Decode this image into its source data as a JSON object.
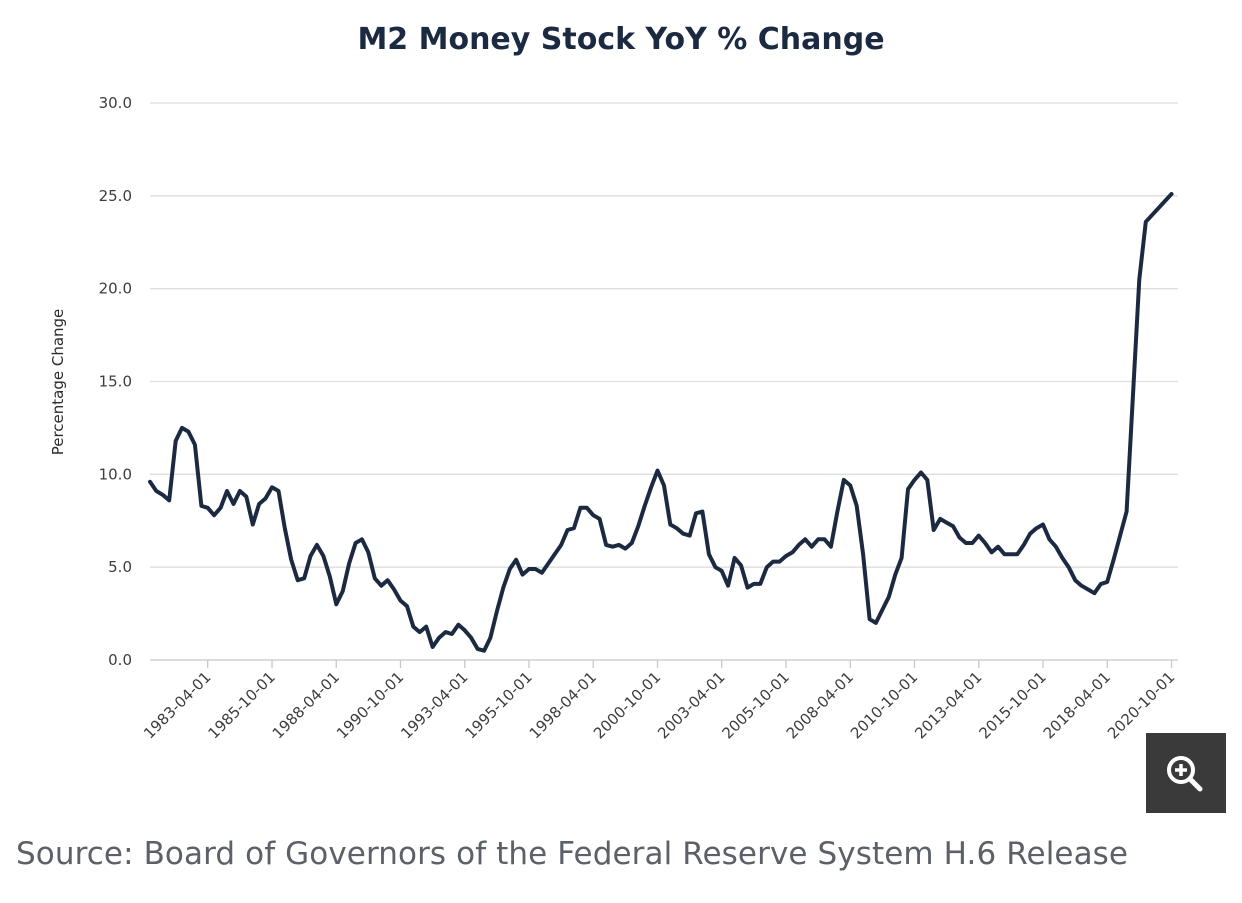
{
  "chart_data": {
    "type": "line",
    "title": "M2 Money Stock YoY % Change",
    "ylabel": "Percentage Change",
    "xlabel": "",
    "ylim": [
      0,
      30
    ],
    "y_ticks": [
      "0.0",
      "5.0",
      "10.0",
      "15.0",
      "20.0",
      "25.0",
      "30.0"
    ],
    "x_range": [
      "1981-01-01",
      "2021-01-01"
    ],
    "x_ticks": [
      "1983-04-01",
      "1985-10-01",
      "1988-04-01",
      "1990-10-01",
      "1993-04-01",
      "1995-10-01",
      "1998-04-01",
      "2000-10-01",
      "2003-04-01",
      "2005-10-01",
      "2008-04-01",
      "2010-10-01",
      "2013-04-01",
      "2015-10-01",
      "2018-04-01",
      "2020-10-01"
    ],
    "grid": true,
    "legend": "none",
    "series": [
      {
        "color": "#1b2a41",
        "points": [
          [
            "1981-01-01",
            9.6
          ],
          [
            "1981-04-01",
            9.1
          ],
          [
            "1981-07-01",
            8.9
          ],
          [
            "1981-10-01",
            8.6
          ],
          [
            "1982-01-01",
            11.8
          ],
          [
            "1982-04-01",
            12.5
          ],
          [
            "1982-07-01",
            12.3
          ],
          [
            "1982-10-01",
            11.6
          ],
          [
            "1983-01-01",
            8.3
          ],
          [
            "1983-04-01",
            8.2
          ],
          [
            "1983-07-01",
            7.8
          ],
          [
            "1983-10-01",
            8.2
          ],
          [
            "1984-01-01",
            9.1
          ],
          [
            "1984-04-01",
            8.4
          ],
          [
            "1984-07-01",
            9.1
          ],
          [
            "1984-10-01",
            8.8
          ],
          [
            "1985-01-01",
            7.3
          ],
          [
            "1985-04-01",
            8.4
          ],
          [
            "1985-07-01",
            8.7
          ],
          [
            "1985-10-01",
            9.3
          ],
          [
            "1986-01-01",
            9.1
          ],
          [
            "1986-04-01",
            7.1
          ],
          [
            "1986-07-01",
            5.4
          ],
          [
            "1986-10-01",
            4.3
          ],
          [
            "1987-01-01",
            4.4
          ],
          [
            "1987-04-01",
            5.6
          ],
          [
            "1987-07-01",
            6.2
          ],
          [
            "1987-10-01",
            5.6
          ],
          [
            "1988-01-01",
            4.5
          ],
          [
            "1988-04-01",
            3.0
          ],
          [
            "1988-07-01",
            3.7
          ],
          [
            "1988-10-01",
            5.2
          ],
          [
            "1989-01-01",
            6.3
          ],
          [
            "1989-04-01",
            6.5
          ],
          [
            "1989-07-01",
            5.8
          ],
          [
            "1989-10-01",
            4.4
          ],
          [
            "1990-01-01",
            4.0
          ],
          [
            "1990-04-01",
            4.3
          ],
          [
            "1990-07-01",
            3.8
          ],
          [
            "1990-10-01",
            3.2
          ],
          [
            "1991-01-01",
            2.9
          ],
          [
            "1991-04-01",
            1.8
          ],
          [
            "1991-07-01",
            1.5
          ],
          [
            "1991-10-01",
            1.8
          ],
          [
            "1992-01-01",
            0.7
          ],
          [
            "1992-04-01",
            1.2
          ],
          [
            "1992-07-01",
            1.5
          ],
          [
            "1992-10-01",
            1.4
          ],
          [
            "1993-01-01",
            1.9
          ],
          [
            "1993-04-01",
            1.6
          ],
          [
            "1993-07-01",
            1.2
          ],
          [
            "1993-10-01",
            0.6
          ],
          [
            "1994-01-01",
            0.5
          ],
          [
            "1994-04-01",
            1.2
          ],
          [
            "1994-07-01",
            2.6
          ],
          [
            "1994-10-01",
            3.9
          ],
          [
            "1995-01-01",
            4.9
          ],
          [
            "1995-04-01",
            5.4
          ],
          [
            "1995-07-01",
            4.6
          ],
          [
            "1995-10-01",
            4.9
          ],
          [
            "1996-01-01",
            4.9
          ],
          [
            "1996-04-01",
            4.7
          ],
          [
            "1996-07-01",
            5.2
          ],
          [
            "1996-10-01",
            5.7
          ],
          [
            "1997-01-01",
            6.2
          ],
          [
            "1997-04-01",
            7.0
          ],
          [
            "1997-07-01",
            7.1
          ],
          [
            "1997-10-01",
            8.2
          ],
          [
            "1998-01-01",
            8.2
          ],
          [
            "1998-04-01",
            7.8
          ],
          [
            "1998-07-01",
            7.6
          ],
          [
            "1998-10-01",
            6.2
          ],
          [
            "1999-01-01",
            6.1
          ],
          [
            "1999-04-01",
            6.2
          ],
          [
            "1999-07-01",
            6.0
          ],
          [
            "1999-10-01",
            6.3
          ],
          [
            "2000-01-01",
            7.2
          ],
          [
            "2000-04-01",
            8.3
          ],
          [
            "2000-07-01",
            9.3
          ],
          [
            "2000-10-01",
            10.2
          ],
          [
            "2001-01-01",
            9.4
          ],
          [
            "2001-04-01",
            7.3
          ],
          [
            "2001-07-01",
            7.1
          ],
          [
            "2001-10-01",
            6.8
          ],
          [
            "2002-01-01",
            6.7
          ],
          [
            "2002-04-01",
            7.9
          ],
          [
            "2002-07-01",
            8.0
          ],
          [
            "2002-10-01",
            5.7
          ],
          [
            "2003-01-01",
            5.0
          ],
          [
            "2003-04-01",
            4.8
          ],
          [
            "2003-07-01",
            4.0
          ],
          [
            "2003-10-01",
            5.5
          ],
          [
            "2004-01-01",
            5.1
          ],
          [
            "2004-04-01",
            3.9
          ],
          [
            "2004-07-01",
            4.1
          ],
          [
            "2004-10-01",
            4.1
          ],
          [
            "2005-01-01",
            5.0
          ],
          [
            "2005-04-01",
            5.3
          ],
          [
            "2005-07-01",
            5.3
          ],
          [
            "2005-10-01",
            5.6
          ],
          [
            "2006-01-01",
            5.8
          ],
          [
            "2006-04-01",
            6.2
          ],
          [
            "2006-07-01",
            6.5
          ],
          [
            "2006-10-01",
            6.1
          ],
          [
            "2007-01-01",
            6.5
          ],
          [
            "2007-04-01",
            6.5
          ],
          [
            "2007-07-01",
            6.1
          ],
          [
            "2007-10-01",
            8.0
          ],
          [
            "2008-01-01",
            9.7
          ],
          [
            "2008-04-01",
            9.4
          ],
          [
            "2008-07-01",
            8.3
          ],
          [
            "2008-10-01",
            5.7
          ],
          [
            "2009-01-01",
            2.2
          ],
          [
            "2009-04-01",
            2.0
          ],
          [
            "2009-07-01",
            2.7
          ],
          [
            "2009-10-01",
            3.4
          ],
          [
            "2010-01-01",
            4.6
          ],
          [
            "2010-04-01",
            5.5
          ],
          [
            "2010-07-01",
            9.2
          ],
          [
            "2010-10-01",
            9.7
          ],
          [
            "2011-01-01",
            10.1
          ],
          [
            "2011-04-01",
            9.7
          ],
          [
            "2011-07-01",
            7.0
          ],
          [
            "2011-10-01",
            7.6
          ],
          [
            "2012-01-01",
            7.4
          ],
          [
            "2012-04-01",
            7.2
          ],
          [
            "2012-07-01",
            6.6
          ],
          [
            "2012-10-01",
            6.3
          ],
          [
            "2013-01-01",
            6.3
          ],
          [
            "2013-04-01",
            6.7
          ],
          [
            "2013-07-01",
            6.3
          ],
          [
            "2013-10-01",
            5.8
          ],
          [
            "2014-01-01",
            6.1
          ],
          [
            "2014-04-01",
            5.7
          ],
          [
            "2014-07-01",
            5.7
          ],
          [
            "2014-10-01",
            5.7
          ],
          [
            "2015-01-01",
            6.2
          ],
          [
            "2015-04-01",
            6.8
          ],
          [
            "2015-07-01",
            7.1
          ],
          [
            "2015-10-01",
            7.3
          ],
          [
            "2016-01-01",
            6.5
          ],
          [
            "2016-04-01",
            6.1
          ],
          [
            "2016-07-01",
            5.5
          ],
          [
            "2016-10-01",
            5.0
          ],
          [
            "2017-01-01",
            4.3
          ],
          [
            "2017-04-01",
            4.0
          ],
          [
            "2017-07-01",
            3.8
          ],
          [
            "2017-10-01",
            3.6
          ],
          [
            "2018-01-01",
            4.1
          ],
          [
            "2018-04-01",
            4.2
          ],
          [
            "2018-07-01",
            5.4
          ],
          [
            "2018-10-01",
            6.7
          ],
          [
            "2019-01-01",
            8.0
          ],
          [
            "2019-07-01",
            20.5
          ],
          [
            "2019-10-01",
            23.6
          ],
          [
            "2020-10-01",
            25.1
          ]
        ]
      }
    ]
  },
  "source_note": "Source: Board of Governors of the Federal Reserve System H.6 Release",
  "zoom_button": {
    "icon": "zoom-in-icon",
    "background": "#3a3a3a"
  }
}
